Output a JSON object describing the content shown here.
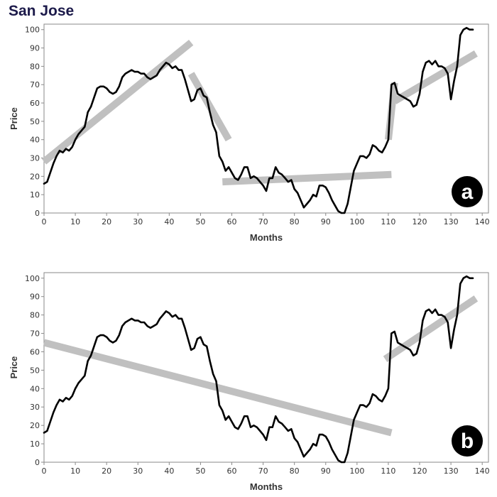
{
  "title": "San Jose",
  "chart_data": [
    {
      "type": "line",
      "panel_label": "a",
      "xlabel": "Months",
      "ylabel": "Price",
      "xlim": [
        0,
        142
      ],
      "ylim": [
        0,
        103
      ],
      "xticks": [
        0,
        10,
        20,
        30,
        40,
        50,
        60,
        70,
        80,
        90,
        100,
        110,
        120,
        130,
        140
      ],
      "yticks": [
        0,
        10,
        20,
        30,
        40,
        50,
        60,
        70,
        80,
        90,
        100
      ],
      "series": [
        {
          "role": "price",
          "color": "#000000",
          "x": [
            0,
            1,
            2,
            3,
            4,
            5,
            6,
            7,
            8,
            9,
            10,
            11,
            12,
            13,
            14,
            15,
            16,
            17,
            18,
            19,
            20,
            21,
            22,
            23,
            24,
            25,
            26,
            27,
            28,
            29,
            30,
            31,
            32,
            33,
            34,
            35,
            36,
            37,
            38,
            39,
            40,
            41,
            42,
            43,
            44,
            45,
            46,
            47,
            48,
            49,
            50,
            51,
            52,
            53,
            54,
            55,
            56,
            57,
            58,
            59,
            60,
            61,
            62,
            63,
            64,
            65,
            66,
            67,
            68,
            69,
            70,
            71,
            72,
            73,
            74,
            75,
            76,
            77,
            78,
            79,
            80,
            81,
            82,
            83,
            84,
            85,
            86,
            87,
            88,
            89,
            90,
            91,
            92,
            93,
            94,
            95,
            96,
            97,
            98,
            99,
            100,
            101,
            102,
            103,
            104,
            105,
            106,
            107,
            108,
            109,
            110,
            111,
            112,
            113,
            114,
            115,
            116,
            117,
            118,
            119,
            120,
            121,
            122,
            123,
            124,
            125,
            126,
            127,
            128,
            129,
            130,
            131,
            132,
            133,
            134,
            135,
            136,
            137
          ],
          "y": [
            16,
            17,
            22,
            27,
            31,
            34,
            33,
            35,
            34,
            36,
            40,
            43,
            45,
            47,
            55,
            58,
            63,
            68,
            69,
            69,
            68,
            66,
            65,
            66,
            69,
            74,
            76,
            77,
            78,
            77,
            77,
            76,
            76,
            74,
            73,
            74,
            75,
            78,
            80,
            82,
            81,
            79,
            80,
            78,
            78,
            73,
            67,
            61,
            62,
            67,
            68,
            64,
            63,
            55,
            48,
            44,
            31,
            28,
            23,
            25,
            22,
            19,
            18,
            21,
            25,
            25,
            19,
            20,
            19,
            17,
            15,
            12,
            19,
            19,
            25,
            22,
            21,
            19,
            17,
            18,
            13,
            11,
            7,
            3,
            5,
            7,
            10,
            9,
            15,
            15,
            14,
            11,
            7,
            4,
            1,
            0,
            0,
            5,
            14,
            23,
            27,
            31,
            31,
            30,
            32,
            37,
            36,
            34,
            33,
            36,
            40,
            70,
            71,
            65,
            64,
            63,
            62,
            61,
            58,
            59,
            65,
            77,
            82,
            83,
            81,
            83,
            80,
            80,
            79,
            76,
            62,
            72,
            80,
            97,
            100,
            101,
            100,
            100
          ]
        },
        {
          "role": "trend",
          "color": "#c0c0c0",
          "segments": [
            {
              "x": [
                0,
                47
              ],
              "y": [
                28,
                93
              ]
            },
            {
              "x": [
                47,
                59
              ],
              "y": [
                76,
                40
              ]
            },
            {
              "x": [
                57,
                111
              ],
              "y": [
                17,
                21
              ]
            },
            {
              "x": [
                110,
                112
              ],
              "y": [
                40,
                71
              ]
            },
            {
              "x": [
                112,
                138
              ],
              "y": [
                61,
                87
              ]
            }
          ]
        }
      ]
    },
    {
      "type": "line",
      "panel_label": "b",
      "xlabel": "Months",
      "ylabel": "Price",
      "xlim": [
        0,
        142
      ],
      "ylim": [
        0,
        103
      ],
      "xticks": [
        0,
        10,
        20,
        30,
        40,
        50,
        60,
        70,
        80,
        90,
        100,
        110,
        120,
        130,
        140
      ],
      "yticks": [
        0,
        10,
        20,
        30,
        40,
        50,
        60,
        70,
        80,
        90,
        100
      ],
      "series": [
        {
          "role": "price",
          "color": "#000000",
          "x": [
            0,
            1,
            2,
            3,
            4,
            5,
            6,
            7,
            8,
            9,
            10,
            11,
            12,
            13,
            14,
            15,
            16,
            17,
            18,
            19,
            20,
            21,
            22,
            23,
            24,
            25,
            26,
            27,
            28,
            29,
            30,
            31,
            32,
            33,
            34,
            35,
            36,
            37,
            38,
            39,
            40,
            41,
            42,
            43,
            44,
            45,
            46,
            47,
            48,
            49,
            50,
            51,
            52,
            53,
            54,
            55,
            56,
            57,
            58,
            59,
            60,
            61,
            62,
            63,
            64,
            65,
            66,
            67,
            68,
            69,
            70,
            71,
            72,
            73,
            74,
            75,
            76,
            77,
            78,
            79,
            80,
            81,
            82,
            83,
            84,
            85,
            86,
            87,
            88,
            89,
            90,
            91,
            92,
            93,
            94,
            95,
            96,
            97,
            98,
            99,
            100,
            101,
            102,
            103,
            104,
            105,
            106,
            107,
            108,
            109,
            110,
            111,
            112,
            113,
            114,
            115,
            116,
            117,
            118,
            119,
            120,
            121,
            122,
            123,
            124,
            125,
            126,
            127,
            128,
            129,
            130,
            131,
            132,
            133,
            134,
            135,
            136,
            137
          ],
          "y": [
            16,
            17,
            22,
            27,
            31,
            34,
            33,
            35,
            34,
            36,
            40,
            43,
            45,
            47,
            55,
            58,
            63,
            68,
            69,
            69,
            68,
            66,
            65,
            66,
            69,
            74,
            76,
            77,
            78,
            77,
            77,
            76,
            76,
            74,
            73,
            74,
            75,
            78,
            80,
            82,
            81,
            79,
            80,
            78,
            78,
            73,
            67,
            61,
            62,
            67,
            68,
            64,
            63,
            55,
            48,
            44,
            31,
            28,
            23,
            25,
            22,
            19,
            18,
            21,
            25,
            25,
            19,
            20,
            19,
            17,
            15,
            12,
            19,
            19,
            25,
            22,
            21,
            19,
            17,
            18,
            13,
            11,
            7,
            3,
            5,
            7,
            10,
            9,
            15,
            15,
            14,
            11,
            7,
            4,
            1,
            0,
            0,
            5,
            14,
            23,
            27,
            31,
            31,
            30,
            32,
            37,
            36,
            34,
            33,
            36,
            40,
            70,
            71,
            65,
            64,
            63,
            62,
            61,
            58,
            59,
            65,
            77,
            82,
            83,
            81,
            83,
            80,
            80,
            79,
            76,
            62,
            72,
            80,
            97,
            100,
            101,
            100,
            100
          ]
        },
        {
          "role": "trend",
          "color": "#c0c0c0",
          "segments": [
            {
              "x": [
                0,
                111
              ],
              "y": [
                65,
                16
              ]
            },
            {
              "x": [
                109,
                138
              ],
              "y": [
                56,
                89
              ]
            }
          ]
        }
      ]
    }
  ]
}
